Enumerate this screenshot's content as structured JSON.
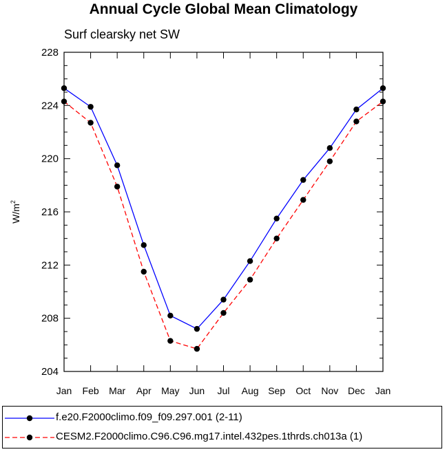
{
  "chart_data": {
    "type": "line",
    "title": "Annual Cycle Global Mean Climatology",
    "subtitle": "Surf clearsky net SW",
    "xlabel": "",
    "ylabel": "W/m",
    "ylabel_superscript": "2",
    "categories": [
      "Jan",
      "Feb",
      "Mar",
      "Apr",
      "May",
      "Jun",
      "Jul",
      "Aug",
      "Sep",
      "Oct",
      "Nov",
      "Dec",
      "Jan"
    ],
    "ylim": [
      204,
      228
    ],
    "yticks": [
      "204",
      "208",
      "212",
      "216",
      "220",
      "224",
      "228"
    ],
    "series": [
      {
        "name": "f.e20.F2000climo.f09_f09.297.001 (2-11)",
        "color": "#0000ff",
        "line_style": "solid",
        "marker": "filled-circle",
        "values": [
          225.3,
          223.9,
          219.5,
          213.5,
          208.2,
          207.2,
          209.4,
          212.3,
          215.5,
          218.4,
          220.8,
          223.7,
          225.3
        ]
      },
      {
        "name": "CESM2.F2000climo.C96.C96.mg17.intel.432pes.1thrds.ch013a (1)",
        "color": "#ff0000",
        "line_style": "dashed",
        "marker": "filled-circle",
        "values": [
          224.3,
          222.7,
          217.9,
          211.5,
          206.3,
          205.7,
          208.4,
          210.9,
          214.0,
          216.9,
          219.8,
          222.8,
          224.3
        ]
      }
    ],
    "grid": false,
    "legend_position": "bottom"
  }
}
